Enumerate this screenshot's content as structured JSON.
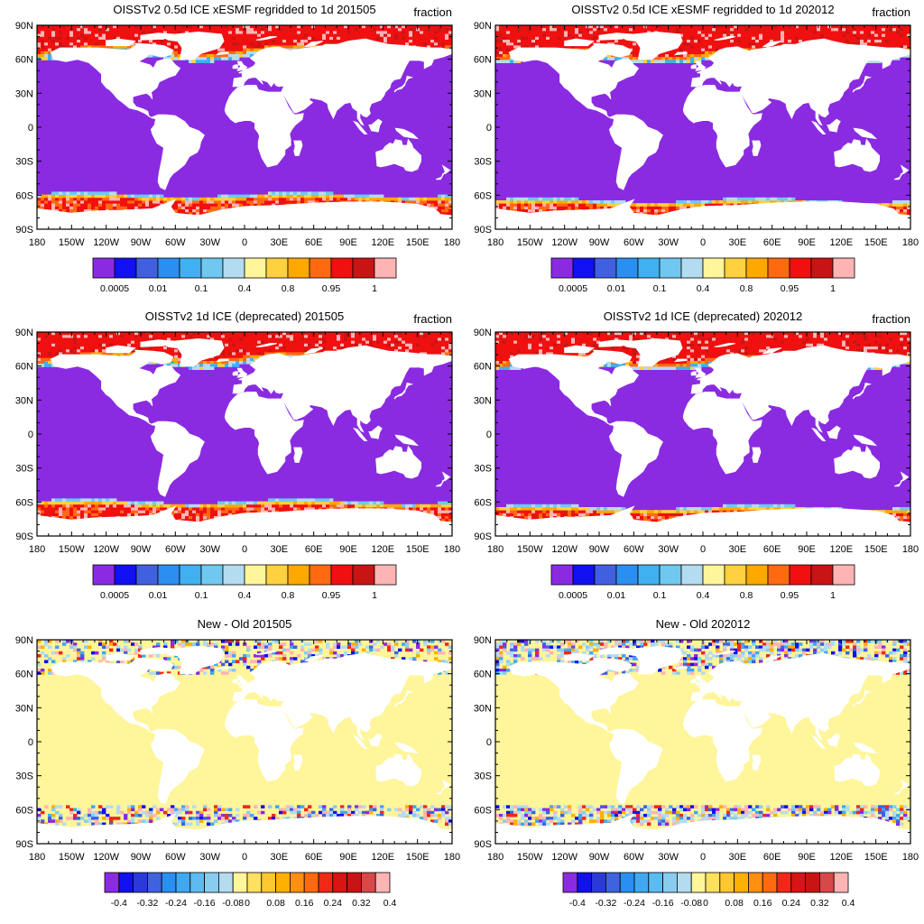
{
  "chart_data": [
    {
      "type": "heatmap",
      "title": "OISSTv2 0.5d ICE xESMF regridded to 1d 201505",
      "units": "fraction",
      "xlim": [
        -180,
        180
      ],
      "ylim": [
        -90,
        90
      ],
      "xticks": [
        "180",
        "150W",
        "120W",
        "90W",
        "60W",
        "30W",
        "0",
        "30E",
        "60E",
        "90E",
        "120E",
        "150E",
        "180"
      ],
      "yticks": [
        "90N",
        "60N",
        "30N",
        "0",
        "30S",
        "60S",
        "90S"
      ],
      "scale": "ice",
      "variant": "new_may"
    },
    {
      "type": "heatmap",
      "title": "OISSTv2 0.5d ICE xESMF regridded to 1d 202012",
      "units": "fraction",
      "xlim": [
        -180,
        180
      ],
      "ylim": [
        -90,
        90
      ],
      "xticks": [
        "180",
        "150W",
        "120W",
        "90W",
        "60W",
        "30W",
        "0",
        "30E",
        "60E",
        "90E",
        "120E",
        "150E",
        "180"
      ],
      "yticks": [
        "90N",
        "60N",
        "30N",
        "0",
        "30S",
        "60S",
        "90S"
      ],
      "scale": "ice",
      "variant": "new_dec"
    },
    {
      "type": "heatmap",
      "title": "OISSTv2 1d ICE (deprecated) 201505",
      "units": "fraction",
      "xlim": [
        -180,
        180
      ],
      "ylim": [
        -90,
        90
      ],
      "xticks": [
        "180",
        "150W",
        "120W",
        "90W",
        "60W",
        "30W",
        "0",
        "30E",
        "60E",
        "90E",
        "120E",
        "150E",
        "180"
      ],
      "yticks": [
        "90N",
        "60N",
        "30N",
        "0",
        "30S",
        "60S",
        "90S"
      ],
      "scale": "ice",
      "variant": "old_may"
    },
    {
      "type": "heatmap",
      "title": "OISSTv2 1d ICE (deprecated) 202012",
      "units": "fraction",
      "xlim": [
        -180,
        180
      ],
      "ylim": [
        -90,
        90
      ],
      "xticks": [
        "180",
        "150W",
        "120W",
        "90W",
        "60W",
        "30W",
        "0",
        "30E",
        "60E",
        "90E",
        "120E",
        "150E",
        "180"
      ],
      "yticks": [
        "90N",
        "60N",
        "30N",
        "0",
        "30S",
        "60S",
        "90S"
      ],
      "scale": "ice",
      "variant": "old_dec"
    },
    {
      "type": "heatmap",
      "title": "New - Old 201505",
      "units": "",
      "xlim": [
        -180,
        180
      ],
      "ylim": [
        -90,
        90
      ],
      "xticks": [
        "180",
        "150W",
        "120W",
        "90W",
        "60W",
        "30W",
        "0",
        "30E",
        "60E",
        "90E",
        "120E",
        "150E",
        "180"
      ],
      "yticks": [
        "90N",
        "60N",
        "30N",
        "0",
        "30S",
        "60S",
        "90S"
      ],
      "scale": "diff",
      "variant": "diff_may"
    },
    {
      "type": "heatmap",
      "title": "New - Old 202012",
      "units": "",
      "xlim": [
        -180,
        180
      ],
      "ylim": [
        -90,
        90
      ],
      "xticks": [
        "180",
        "150W",
        "120W",
        "90W",
        "60W",
        "30W",
        "0",
        "30E",
        "60E",
        "90E",
        "120E",
        "150E",
        "180"
      ],
      "yticks": [
        "90N",
        "60N",
        "30N",
        "0",
        "30S",
        "60S",
        "90S"
      ],
      "scale": "diff",
      "variant": "diff_dec"
    }
  ],
  "colorbars": {
    "ice": {
      "colors": [
        "#8a2be2",
        "#1010f0",
        "#4060e0",
        "#2a8ff0",
        "#40b0f0",
        "#70c8f0",
        "#b4dcf0",
        "#fff59a",
        "#ffd040",
        "#ffa800",
        "#ff6a10",
        "#f01010",
        "#c81414",
        "#ffb4b4"
      ],
      "labels": [
        "0.0005",
        "0.01",
        "0.1",
        "0.4",
        "0.8",
        "0.95",
        "1"
      ],
      "label_after_box": [
        1,
        3,
        5,
        7,
        9,
        11,
        13
      ]
    },
    "diff": {
      "colors": [
        "#8a2be2",
        "#1010f0",
        "#2a3ad8",
        "#3f63dc",
        "#2a8ff0",
        "#40a8f0",
        "#5cbcf0",
        "#88cdf0",
        "#b4dcf0",
        "#fff59a",
        "#ffe060",
        "#ffc830",
        "#ffb000",
        "#ff9010",
        "#ff6a10",
        "#f02818",
        "#d81414",
        "#c81414",
        "#d84848",
        "#ffb4b4"
      ],
      "labels": [
        "-0.4",
        "-0.32",
        "-0.24",
        "-0.16",
        "-0.08",
        "0",
        "0.08",
        "0.16",
        "0.24",
        "0.32",
        "0.4"
      ],
      "label_after_box": [
        1,
        3,
        5,
        7,
        9,
        10,
        12,
        14,
        16,
        18,
        20
      ]
    }
  },
  "colors": {
    "ocean_ice_free": "#8a2be2",
    "ice_pack": "#f01010",
    "diff_zero": "#fff59a",
    "land": "#ffffff"
  }
}
